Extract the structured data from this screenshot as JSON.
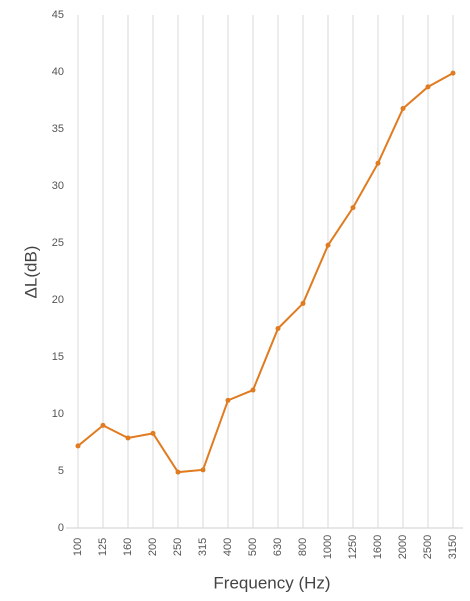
{
  "chart_data": {
    "type": "line",
    "xlabel": "Frequency (Hz)",
    "ylabel": "ΔL(dB)",
    "categories": [
      "100",
      "125",
      "160",
      "200",
      "250",
      "315",
      "400",
      "500",
      "630",
      "800",
      "1000",
      "1250",
      "1600",
      "2000",
      "2500",
      "3150"
    ],
    "values": [
      7.2,
      9.0,
      7.9,
      8.3,
      4.9,
      5.1,
      11.2,
      12.1,
      17.5,
      19.7,
      24.8,
      28.1,
      32.0,
      36.8,
      38.7,
      39.9
    ],
    "color": "#e07b20",
    "ylim": [
      0,
      45
    ],
    "yticks": [
      0,
      5,
      10,
      15,
      20,
      25,
      30,
      35,
      40,
      45
    ],
    "grid": true
  }
}
